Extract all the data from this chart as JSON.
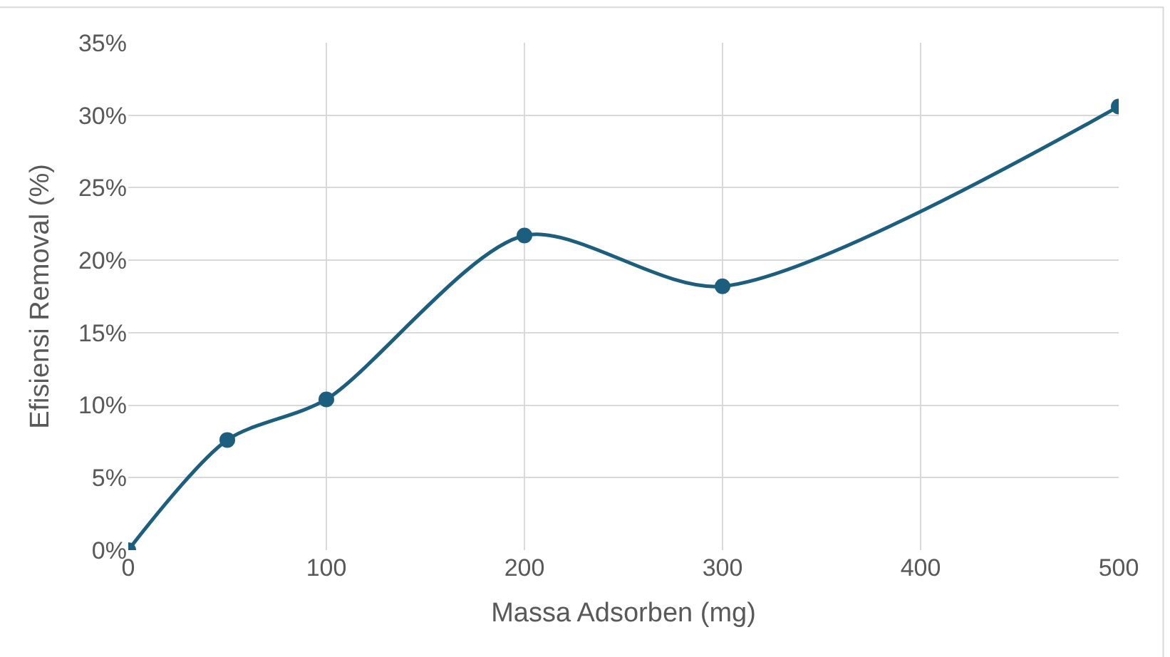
{
  "chart_data": {
    "type": "line",
    "xlabel": "Massa Adsorben (mg)",
    "ylabel": "Efisiensi Removal (%)",
    "x": [
      0,
      50,
      100,
      200,
      300,
      500
    ],
    "series": [
      {
        "color": "#1b5e7d",
        "values": [
          0,
          7.6,
          10.4,
          21.7,
          18.2,
          30.6
        ]
      }
    ],
    "xlim": [
      0,
      500
    ],
    "xticks": [
      0,
      100,
      200,
      300,
      400,
      500
    ],
    "ylim": [
      0,
      35
    ],
    "yticks": [
      {
        "value": 0,
        "label": "0%"
      },
      {
        "value": 5,
        "label": "5%"
      },
      {
        "value": 10,
        "label": "10%"
      },
      {
        "value": 15,
        "label": "15%"
      },
      {
        "value": 20,
        "label": "20%"
      },
      {
        "value": 25,
        "label": "25%"
      },
      {
        "value": 30,
        "label": "30%"
      },
      {
        "value": 35,
        "label": "35%"
      }
    ],
    "grid": true,
    "marker": "circle",
    "line_style": "solid",
    "legend": false
  }
}
